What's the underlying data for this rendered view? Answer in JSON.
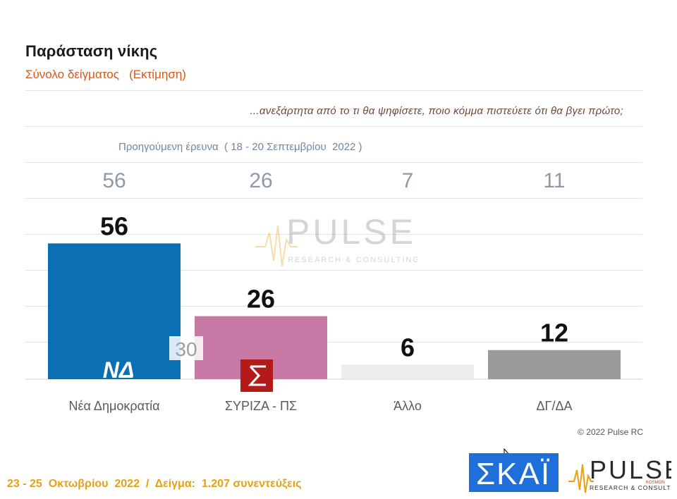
{
  "header": {
    "title": "Παράσταση νίκης",
    "subtitle": "Σύνολο δείγματος   (Εκτίμηση)"
  },
  "question": "...ανεξάρτητα από το τι θα ψηφίσετε, ποιο κόμμα πιστεύετε ότι θα βγει πρώτο;",
  "previous_survey_label": "Προηγούμενη έρευνα  ( 18 - 20 Σεπτεμβρίου  2022 )",
  "chart_data": {
    "type": "bar",
    "categories": [
      "Νέα Δημοκρατία",
      "ΣΥΡΙΖΑ - ΠΣ",
      "Άλλο",
      "ΔΓ/ΔΑ"
    ],
    "values": [
      56,
      26,
      6,
      12
    ],
    "previous_values": [
      "56",
      "26",
      "7",
      "11"
    ],
    "colors": [
      "#0a6fb3",
      "#c979a6",
      "#ececec",
      "#9a9a9a"
    ],
    "ylim": [
      0,
      60
    ],
    "grid": true,
    "annotation": "30"
  },
  "copyright": "© 2022 Pulse RC",
  "footer": "23 - 25  Οκτωβρίου  2022  /  Δείγμα:  1.207 συνεντεύξεις",
  "logos": {
    "skai": "ΣΚΑΪ",
    "pulse": "PULSE",
    "pulse_sub": "RESEARCH & CONSULTING",
    "pulse_tag": "KOSMON",
    "nd": "ΝΔ",
    "syriza_icon": "syriza-star"
  }
}
